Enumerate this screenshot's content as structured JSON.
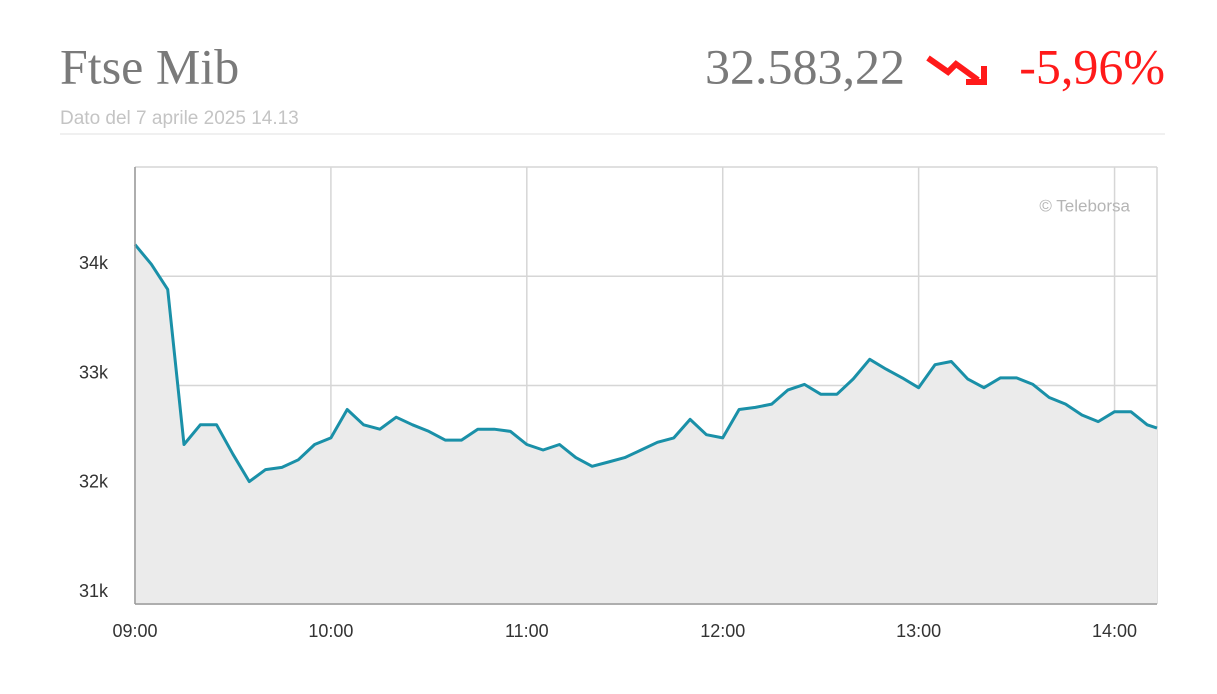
{
  "header": {
    "title": "Ftse Mib",
    "subtitle": "Dato del 7 aprile 2025 14.13",
    "price": "32.583,22",
    "change": "-5,96%"
  },
  "chart_data": {
    "type": "area",
    "watermark": "© Teleborsa",
    "color": "#1a90a8",
    "fill": "#ebebeb",
    "grid": true,
    "x": [
      "09:00",
      "09:05",
      "09:10",
      "09:15",
      "09:20",
      "09:25",
      "09:30",
      "09:35",
      "09:40",
      "09:45",
      "09:50",
      "09:55",
      "10:00",
      "10:05",
      "10:10",
      "10:15",
      "10:20",
      "10:25",
      "10:30",
      "10:35",
      "10:40",
      "10:45",
      "10:50",
      "10:55",
      "11:00",
      "11:05",
      "11:10",
      "11:15",
      "11:20",
      "11:25",
      "11:30",
      "11:35",
      "11:40",
      "11:45",
      "11:50",
      "11:55",
      "12:00",
      "12:05",
      "12:10",
      "12:15",
      "12:20",
      "12:25",
      "12:30",
      "12:35",
      "12:40",
      "12:45",
      "12:50",
      "12:55",
      "13:00",
      "13:05",
      "13:10",
      "13:15",
      "13:20",
      "13:25",
      "13:30",
      "13:35",
      "13:40",
      "13:45",
      "13:50",
      "13:55",
      "14:00",
      "14:05",
      "14:10",
      "14:13"
    ],
    "values": [
      34290,
      34110,
      33880,
      32460,
      32640,
      32640,
      32370,
      32120,
      32230,
      32250,
      32320,
      32460,
      32520,
      32780,
      32640,
      32600,
      32710,
      32640,
      32580,
      32500,
      32500,
      32600,
      32600,
      32580,
      32460,
      32410,
      32460,
      32340,
      32260,
      32300,
      32340,
      32410,
      32480,
      32520,
      32690,
      32550,
      32520,
      32780,
      32800,
      32830,
      32960,
      33010,
      32920,
      32920,
      33060,
      33240,
      33150,
      33070,
      32980,
      33190,
      33220,
      33060,
      32980,
      33070,
      33070,
      33010,
      32890,
      32830,
      32730,
      32670,
      32760,
      32760,
      32640,
      32610
    ],
    "xlim": [
      "09:00",
      "14:13"
    ],
    "xticks": [
      "09:00",
      "10:00",
      "11:00",
      "12:00",
      "13:00",
      "14:00"
    ],
    "ylim": [
      31000,
      35000
    ],
    "yticks": [
      {
        "value": 31000,
        "label": "31k"
      },
      {
        "value": 32000,
        "label": "32k"
      },
      {
        "value": 33000,
        "label": "33k"
      },
      {
        "value": 34000,
        "label": "34k"
      }
    ]
  }
}
